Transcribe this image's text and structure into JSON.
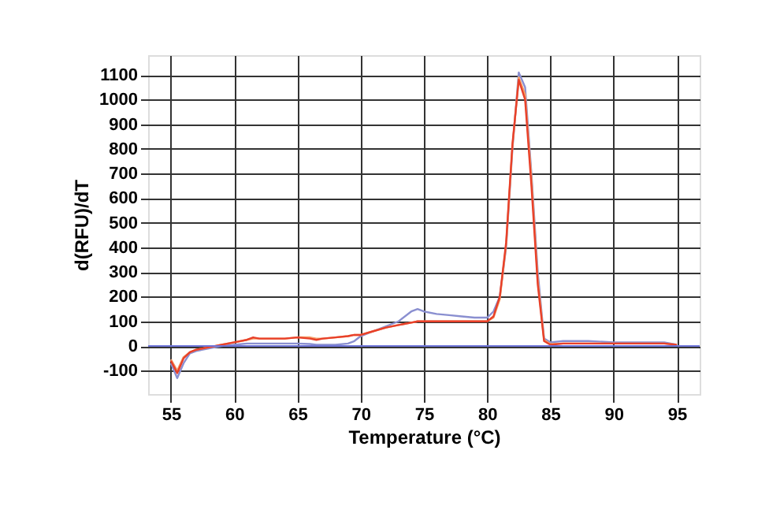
{
  "chart_data": {
    "type": "line",
    "xlabel": "Temperature (°C)",
    "ylabel": "d(RFU)/dT",
    "x": [
      55,
      55.5,
      56,
      56.5,
      57,
      58,
      59,
      60,
      61,
      61.5,
      62,
      63,
      64,
      65,
      66,
      66.5,
      67,
      68,
      69,
      69.5,
      70,
      71,
      72,
      73,
      74,
      74.5,
      75,
      76,
      77,
      78,
      79,
      80,
      80.5,
      81,
      81.5,
      82,
      82.5,
      83,
      83.5,
      84,
      84.5,
      85,
      86,
      88,
      90,
      92,
      94,
      95
    ],
    "series": [
      {
        "color": "#8a8fd0",
        "values": [
          -70,
          -130,
          -70,
          -30,
          -20,
          -10,
          0,
          5,
          10,
          10,
          10,
          10,
          10,
          10,
          8,
          5,
          5,
          5,
          10,
          20,
          40,
          60,
          80,
          100,
          140,
          150,
          140,
          130,
          125,
          120,
          115,
          115,
          140,
          200,
          400,
          800,
          1110,
          1050,
          700,
          300,
          30,
          15,
          20,
          20,
          15,
          15,
          15,
          5
        ]
      },
      {
        "color": "#f5a06a",
        "values": [
          -55,
          -100,
          -45,
          -25,
          -15,
          -5,
          5,
          15,
          25,
          30,
          30,
          30,
          30,
          35,
          35,
          30,
          30,
          35,
          40,
          45,
          45,
          60,
          75,
          85,
          95,
          100,
          100,
          100,
          100,
          100,
          100,
          100,
          115,
          190,
          410,
          810,
          1090,
          1020,
          680,
          270,
          25,
          8,
          10,
          10,
          10,
          10,
          10,
          5
        ]
      },
      {
        "color": "#e8402a",
        "values": [
          -60,
          -110,
          -50,
          -25,
          -15,
          -5,
          5,
          15,
          25,
          35,
          30,
          30,
          30,
          35,
          30,
          25,
          30,
          35,
          40,
          45,
          45,
          60,
          75,
          85,
          95,
          100,
          100,
          100,
          100,
          100,
          100,
          100,
          120,
          200,
          420,
          820,
          1080,
          1000,
          650,
          250,
          20,
          5,
          10,
          10,
          10,
          10,
          10,
          5
        ]
      }
    ],
    "xlim": [
      53.2,
      96.8
    ],
    "xticks": [
      55,
      60,
      65,
      70,
      75,
      80,
      85,
      90,
      95
    ],
    "ylim": [
      -195,
      1180
    ],
    "yticks": [
      -100,
      0,
      100,
      200,
      300,
      400,
      500,
      600,
      700,
      800,
      900,
      1000,
      1100
    ],
    "ref_lines": [
      {
        "axis": "y",
        "value": 0,
        "color": "#6e74d8"
      }
    ],
    "grid": true,
    "line_style": "solid"
  }
}
